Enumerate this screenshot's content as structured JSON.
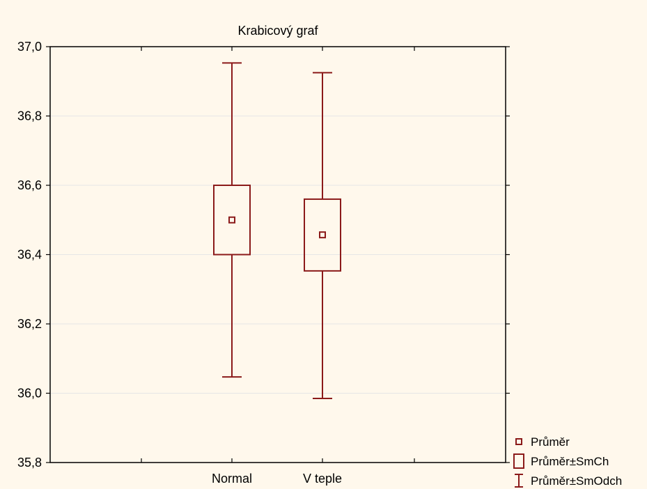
{
  "chart_data": {
    "type": "box",
    "title": "Krabicový graf",
    "xlabel": "",
    "ylabel": "",
    "ylim": [
      35.8,
      37.0
    ],
    "yticks": [
      "35,8",
      "36,0",
      "36,2",
      "36,4",
      "36,6",
      "36,8",
      "37,0"
    ],
    "ytick_values": [
      35.8,
      36.0,
      36.2,
      36.4,
      36.6,
      36.8,
      37.0
    ],
    "grid": true,
    "legend_position": "bottom-right outside",
    "categories": [
      "Normal",
      "V teple"
    ],
    "series": [
      {
        "category": "Normal",
        "mean": 36.5,
        "box_low": 36.4,
        "box_high": 36.6,
        "whisker_low": 36.047,
        "whisker_high": 36.953
      },
      {
        "category": "V teple",
        "mean": 36.457,
        "box_low": 36.353,
        "box_high": 36.56,
        "whisker_low": 35.985,
        "whisker_high": 36.925
      }
    ],
    "legend": [
      "Průměr",
      "Průměr±SmCh",
      "Průměr±SmOdch"
    ],
    "color": "#8b1a1a",
    "grid_color": "#e6e6e6",
    "background": "#fff8ec"
  }
}
